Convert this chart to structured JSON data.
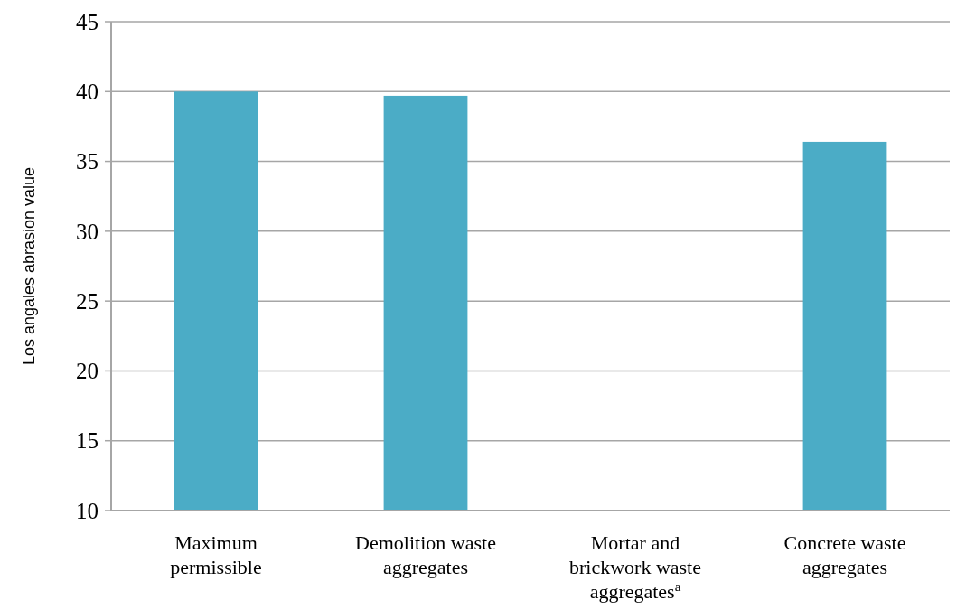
{
  "chart_data": {
    "type": "bar",
    "ylabel": "Los angales abrasion value",
    "categories": [
      "Maximum permissible",
      "Demolition waste aggregates",
      "Mortar and brickwork waste aggregates$^{a}$",
      "Concrete waste aggregates"
    ],
    "values": [
      40,
      39.7,
      null,
      36.4
    ],
    "color": "#4bacc6",
    "ylim": [
      10,
      45
    ],
    "yticks": [
      10,
      15,
      20,
      25,
      30,
      35,
      40,
      45
    ],
    "grid": "y"
  }
}
